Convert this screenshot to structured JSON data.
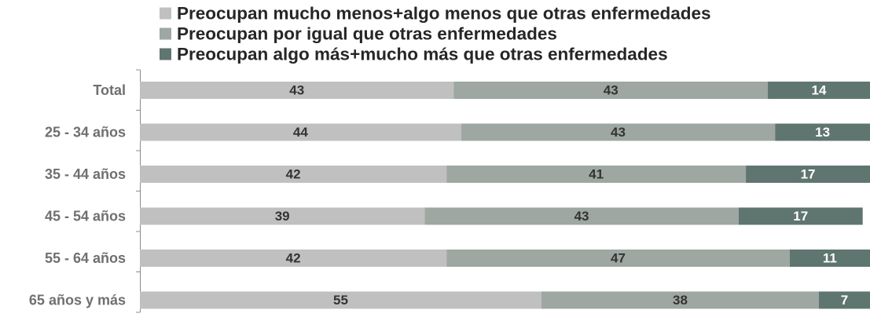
{
  "chart_data": {
    "type": "bar",
    "orientation": "horizontal",
    "stacked": true,
    "categories": [
      "Total",
      "25 - 34 años",
      "35 - 44 años",
      "45 - 54 años",
      "55 - 64 años",
      "65 años y más"
    ],
    "series": [
      {
        "name": "Preocupan mucho menos+algo menos que otras enfermedades",
        "color": "#c0c0c0",
        "label_color": "#333333",
        "values": [
          43,
          44,
          42,
          39,
          42,
          55
        ]
      },
      {
        "name": "Preocupan por igual que otras enfermedades",
        "color": "#9ea7a1",
        "label_color": "#333333",
        "values": [
          43,
          43,
          41,
          43,
          47,
          38
        ]
      },
      {
        "name": "Preocupan algo más+mucho más que otras enfermedades",
        "color": "#5f7570",
        "label_color": "#ffffff",
        "values": [
          14,
          13,
          17,
          17,
          11,
          7
        ]
      }
    ],
    "xlim": [
      0,
      100
    ],
    "grid": false,
    "legend_position": "top"
  }
}
